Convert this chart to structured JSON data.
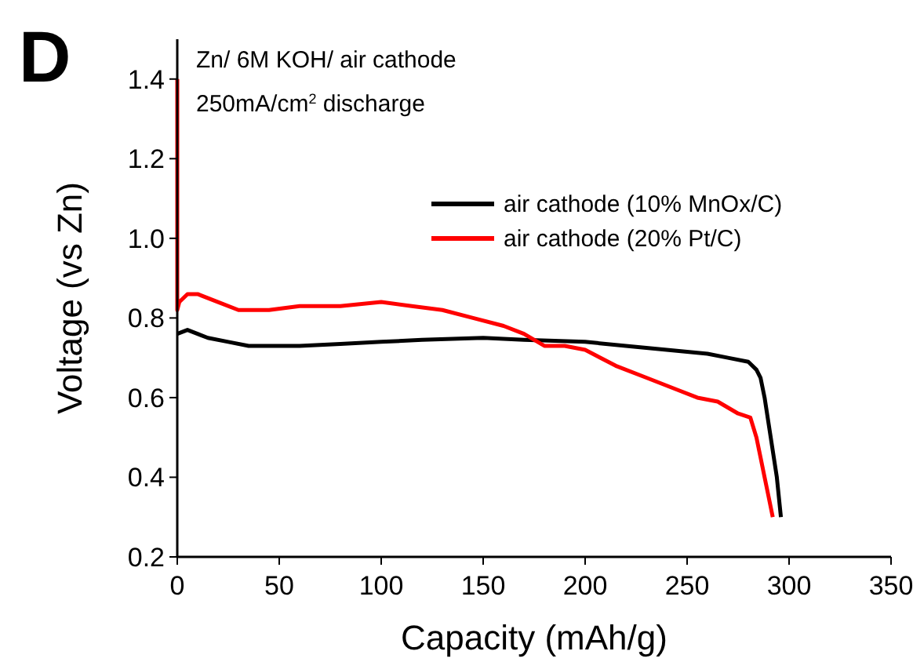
{
  "chart_data": {
    "type": "line",
    "title": "Zn/ 6M KOH/ air cathode",
    "subtitle": "250mA/cm$^{2}$ discharge",
    "xlabel": "Capacity (mAh/g)",
    "ylabel": "Voltage (vs Zn)",
    "annotations": [
      "D"
    ],
    "xlim": [
      0,
      350
    ],
    "ylim": [
      0.2,
      1.5
    ],
    "xticks": [
      0,
      50,
      100,
      150,
      200,
      250,
      300,
      350
    ],
    "yticks": [
      0.2,
      0.4,
      0.6,
      0.8,
      {
        "value": 1,
        "label": "1.0"
      },
      1.2,
      1.4
    ],
    "grid": false,
    "legend": "right",
    "line_style": "solid",
    "marker": "none",
    "series": [
      {
        "name": "air cathode (10% MnOx/C)",
        "color": "#000000",
        "x": [
          0,
          5,
          15,
          25,
          35,
          40,
          60,
          80,
          100,
          120,
          150,
          170,
          200,
          220,
          240,
          260,
          270,
          280,
          284,
          286,
          288,
          291,
          294,
          296
        ],
        "values": [
          0.76,
          0.77,
          0.75,
          0.74,
          0.73,
          0.73,
          0.73,
          0.735,
          0.74,
          0.745,
          0.75,
          0.745,
          0.74,
          0.73,
          0.72,
          0.71,
          0.7,
          0.69,
          0.67,
          0.65,
          0.6,
          0.5,
          0.4,
          0.3
        ]
      },
      {
        "name": "air cathode (20% Pt/C)",
        "color": "#ff0000",
        "x": [
          0,
          0,
          1,
          5,
          10,
          20,
          30,
          45,
          60,
          80,
          100,
          115,
          130,
          145,
          160,
          170,
          180,
          190,
          200,
          215,
          230,
          245,
          255,
          265,
          275,
          281,
          284,
          286,
          288,
          290,
          292
        ],
        "values": [
          1.4,
          0.82,
          0.84,
          0.86,
          0.86,
          0.84,
          0.82,
          0.82,
          0.83,
          0.83,
          0.84,
          0.83,
          0.82,
          0.8,
          0.78,
          0.76,
          0.73,
          0.73,
          0.72,
          0.68,
          0.65,
          0.62,
          0.6,
          0.59,
          0.56,
          0.55,
          0.5,
          0.45,
          0.4,
          0.35,
          0.3
        ]
      }
    ]
  }
}
